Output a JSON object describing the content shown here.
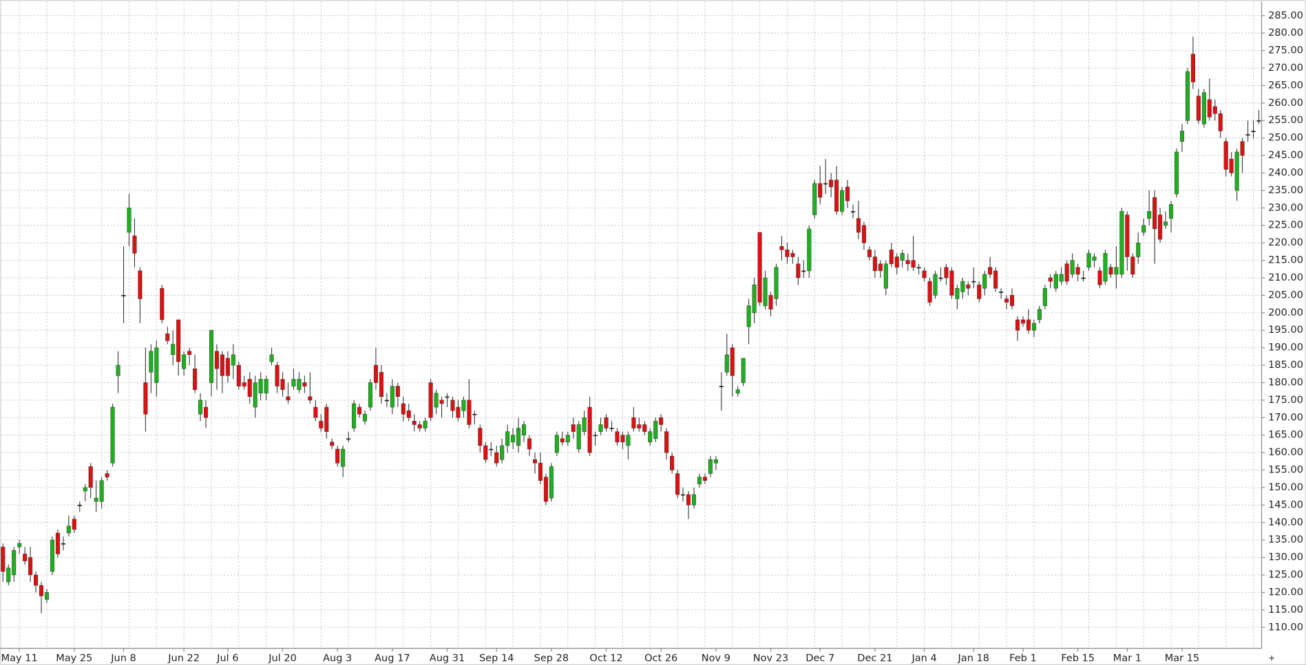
{
  "chart_data": {
    "type": "candlestick",
    "up_color": "#1fb01f",
    "down_color": "#dd1111",
    "grid": true,
    "categories": [
      null,
      null,
      null,
      "May 11",
      null,
      null,
      null,
      null,
      null,
      null,
      null,
      null,
      null,
      "May 25",
      null,
      null,
      null,
      null,
      null,
      null,
      null,
      null,
      "Jun 8",
      null,
      null,
      null,
      null,
      null,
      null,
      null,
      null,
      null,
      null,
      "Jun 22",
      null,
      null,
      null,
      null,
      null,
      null,
      null,
      "Jul 6",
      null,
      null,
      null,
      null,
      null,
      null,
      null,
      null,
      null,
      "Jul 20",
      null,
      null,
      null,
      null,
      null,
      null,
      null,
      null,
      null,
      "Aug 3",
      null,
      null,
      null,
      null,
      null,
      null,
      null,
      null,
      null,
      "Aug 17",
      null,
      null,
      null,
      null,
      null,
      null,
      null,
      null,
      null,
      "Aug 31",
      null,
      null,
      null,
      null,
      null,
      null,
      null,
      null,
      "Sep 14",
      null,
      null,
      null,
      null,
      null,
      null,
      null,
      null,
      null,
      "Sep 28",
      null,
      null,
      null,
      null,
      null,
      null,
      null,
      null,
      null,
      "Oct 12",
      null,
      null,
      null,
      null,
      null,
      null,
      null,
      null,
      null,
      "Oct 26",
      null,
      null,
      null,
      null,
      null,
      null,
      null,
      null,
      null,
      "Nov 9",
      null,
      null,
      null,
      null,
      null,
      null,
      null,
      null,
      null,
      "Nov 23",
      null,
      null,
      null,
      null,
      null,
      null,
      null,
      null,
      "Dec 7",
      null,
      null,
      null,
      null,
      null,
      null,
      null,
      null,
      null,
      "Dec 21",
      null,
      null,
      null,
      null,
      null,
      null,
      null,
      null,
      "Jan 4",
      null,
      null,
      null,
      null,
      null,
      null,
      null,
      null,
      "Jan 18",
      null,
      null,
      null,
      null,
      null,
      null,
      null,
      null,
      "Feb 1",
      null,
      null,
      null,
      null,
      null,
      null,
      null,
      null,
      null,
      "Feb 15",
      null,
      null,
      null,
      null,
      null,
      null,
      null,
      null,
      "Mar 1",
      null,
      null,
      null,
      null,
      null,
      null,
      null,
      null,
      null,
      "Mar 15",
      null,
      null,
      null,
      null,
      null,
      null,
      null,
      null,
      null,
      null,
      null,
      null,
      null,
      null
    ],
    "open": [
      133,
      123,
      125,
      133,
      131,
      130,
      125,
      122,
      118,
      126,
      137,
      134,
      137,
      141,
      145,
      149,
      156,
      146,
      146,
      154,
      157,
      182,
      205,
      223,
      222,
      212,
      180,
      183,
      180,
      207,
      194,
      188,
      198,
      184,
      189,
      184,
      171,
      173,
      180,
      189,
      188,
      187,
      185,
      185,
      180,
      181,
      173,
      177,
      177,
      186,
      185,
      181,
      176,
      179,
      178,
      180,
      176,
      173,
      169,
      173,
      163,
      161,
      156,
      164,
      167,
      173,
      169,
      173,
      185,
      183,
      175,
      173,
      179,
      174,
      172,
      169,
      168,
      167,
      180,
      173,
      175,
      176,
      175,
      173,
      172,
      175,
      171,
      167,
      162,
      161,
      160,
      158,
      162,
      163,
      162,
      165,
      164,
      158,
      157,
      153,
      147,
      160,
      164,
      163,
      168,
      161,
      166,
      173,
      165,
      166,
      170,
      167,
      166,
      165,
      162,
      170,
      168,
      168,
      163,
      164,
      170,
      166,
      159,
      154,
      148,
      148,
      145,
      151,
      153,
      154,
      157,
      179,
      183,
      190,
      177,
      180,
      196,
      200,
      223,
      202,
      205,
      204,
      219,
      218,
      217,
      214,
      212,
      212,
      228,
      237,
      237,
      238,
      238,
      229,
      236,
      229,
      227,
      225,
      218,
      216,
      214,
      207,
      218,
      216,
      215,
      215,
      215,
      213,
      212,
      209,
      205,
      210,
      213,
      212,
      204,
      206,
      208,
      209,
      208,
      207,
      213,
      212,
      206,
      204,
      205,
      198,
      198,
      198,
      195,
      198,
      202,
      210,
      207,
      209,
      214,
      211,
      213,
      210,
      213,
      215,
      212,
      209,
      213,
      211,
      211,
      228,
      216,
      216,
      223,
      227,
      233,
      228,
      225,
      227,
      234,
      249,
      255,
      274,
      262,
      254,
      261,
      259,
      257,
      249,
      244,
      235,
      249,
      251,
      252,
      255
    ],
    "high": [
      134,
      128,
      133,
      135,
      133,
      133,
      126,
      123,
      121,
      136,
      138,
      136,
      142,
      142,
      146,
      151,
      157,
      152,
      153,
      155,
      174,
      189,
      219,
      234,
      227,
      213,
      190,
      191,
      192,
      208,
      196,
      195,
      198,
      189,
      190,
      188,
      177,
      175,
      195,
      191,
      189,
      189,
      191,
      186,
      182,
      183,
      182,
      183,
      182,
      190,
      186,
      183,
      180,
      184,
      183,
      182,
      183,
      175,
      171,
      174,
      164,
      162,
      162,
      166,
      175,
      174,
      172,
      181,
      190,
      185,
      177,
      181,
      180,
      176,
      174,
      171,
      169,
      170,
      181,
      178,
      176,
      177,
      176,
      175,
      176,
      181,
      172,
      168,
      163,
      163,
      162,
      164,
      168,
      167,
      170,
      169,
      165,
      160,
      160,
      154,
      157,
      166,
      166,
      166,
      170,
      169,
      172,
      176,
      166,
      170,
      171,
      169,
      167,
      166,
      166,
      173,
      170,
      169,
      167,
      170,
      171,
      167,
      160,
      155,
      150,
      149,
      150,
      154,
      154,
      159,
      159,
      183,
      194,
      191,
      179,
      187,
      204,
      210,
      223,
      212,
      206,
      214,
      222,
      220,
      218,
      216,
      215,
      225,
      238,
      242,
      244,
      240,
      242,
      236,
      238,
      231,
      232,
      226,
      219,
      218,
      215,
      215,
      220,
      217,
      218,
      217,
      222,
      214,
      213,
      210,
      212,
      213,
      214,
      213,
      208,
      210,
      209,
      213,
      209,
      212,
      216,
      213,
      207,
      205,
      207,
      199,
      199,
      201,
      198,
      202,
      208,
      211,
      212,
      213,
      215,
      217,
      214,
      212,
      218,
      217,
      213,
      218,
      214,
      219,
      230,
      229,
      217,
      223,
      227,
      235,
      235,
      230,
      229,
      232,
      247,
      254,
      270,
      279,
      264,
      264,
      267,
      261,
      258,
      250,
      246,
      247,
      250,
      255,
      255,
      258
    ],
    "low": [
      123,
      122,
      123,
      131,
      128,
      123,
      120,
      114,
      117,
      125,
      130,
      132,
      136,
      137,
      143,
      146,
      147,
      143,
      144,
      152,
      156,
      177,
      197,
      219,
      213,
      197,
      166,
      177,
      176,
      197,
      191,
      185,
      182,
      182,
      185,
      177,
      169,
      167,
      176,
      178,
      177,
      180,
      181,
      178,
      178,
      174,
      170,
      175,
      175,
      185,
      177,
      176,
      174,
      178,
      177,
      177,
      174,
      169,
      166,
      164,
      161,
      156,
      153,
      163,
      166,
      170,
      168,
      172,
      178,
      174,
      173,
      171,
      173,
      169,
      169,
      166,
      166,
      166,
      169,
      171,
      170,
      173,
      170,
      169,
      170,
      167,
      168,
      160,
      157,
      159,
      156,
      157,
      160,
      161,
      160,
      163,
      159,
      154,
      151,
      145,
      146,
      159,
      162,
      162,
      164,
      160,
      165,
      159,
      162,
      165,
      166,
      166,
      162,
      161,
      158,
      166,
      166,
      165,
      162,
      163,
      166,
      158,
      154,
      147,
      146,
      141,
      144,
      150,
      151,
      153,
      155,
      172,
      182,
      176,
      176,
      179,
      191,
      197,
      202,
      201,
      199,
      202,
      215,
      214,
      214,
      208,
      210,
      210,
      227,
      231,
      234,
      233,
      228,
      228,
      230,
      227,
      221,
      218,
      215,
      210,
      210,
      205,
      213,
      211,
      213,
      212,
      212,
      211,
      209,
      202,
      204,
      209,
      208,
      204,
      201,
      204,
      205,
      207,
      203,
      205,
      210,
      206,
      204,
      201,
      201,
      192,
      196,
      194,
      193,
      197,
      201,
      207,
      206,
      208,
      208,
      210,
      209,
      209,
      212,
      213,
      207,
      208,
      210,
      207,
      210,
      212,
      210,
      214,
      222,
      225,
      214,
      220,
      224,
      223,
      233,
      246,
      254,
      264,
      254,
      253,
      255,
      255,
      250,
      239,
      239,
      232,
      240,
      249,
      250,
      254
    ],
    "close": [
      126,
      127,
      132,
      134,
      129,
      125,
      122,
      119,
      120,
      135,
      131,
      134,
      139,
      138,
      145,
      150,
      150,
      147,
      152,
      153,
      173,
      185,
      205,
      230,
      217,
      204,
      171,
      189,
      190,
      198,
      192,
      191,
      186,
      188,
      188,
      178,
      175,
      170,
      195,
      184,
      182,
      182,
      188,
      179,
      179,
      176,
      180,
      181,
      181,
      188,
      179,
      178,
      175,
      181,
      181,
      179,
      175,
      170,
      167,
      166,
      162,
      157,
      161,
      164,
      174,
      171,
      171,
      180,
      180,
      176,
      175,
      179,
      176,
      171,
      170,
      168,
      167,
      169,
      170,
      177,
      174,
      176,
      172,
      170,
      175,
      168,
      171,
      162,
      158,
      161,
      157,
      162,
      166,
      165,
      167,
      168,
      161,
      157,
      152,
      146,
      156,
      165,
      163,
      165,
      166,
      168,
      170,
      160,
      165,
      168,
      167,
      167,
      163,
      163,
      165,
      167,
      167,
      166,
      166,
      169,
      168,
      160,
      155,
      148,
      148,
      145,
      148,
      153,
      152,
      158,
      158,
      179,
      188,
      182,
      178,
      187,
      202,
      208,
      203,
      210,
      201,
      213,
      218,
      216,
      216,
      210,
      212,
      224,
      237,
      233,
      237,
      236,
      229,
      235,
      232,
      229,
      223,
      220,
      216,
      212,
      212,
      214,
      214,
      213,
      217,
      214,
      213,
      213,
      210,
      203,
      211,
      210,
      210,
      205,
      207,
      209,
      207,
      209,
      204,
      211,
      211,
      207,
      206,
      203,
      202,
      195,
      197,
      195,
      197,
      201,
      207,
      209,
      211,
      211,
      209,
      215,
      211,
      210,
      217,
      216,
      208,
      217,
      211,
      213,
      229,
      216,
      211,
      220,
      225,
      229,
      224,
      221,
      226,
      231,
      246,
      252,
      269,
      266,
      255,
      263,
      256,
      257,
      252,
      241,
      240,
      246,
      245,
      251,
      252,
      255
    ],
    "ylim": [
      104,
      289
    ],
    "yticks": [
      {
        "value": 110,
        "label": "110.00"
      },
      {
        "value": 115,
        "label": "115.00"
      },
      {
        "value": 120,
        "label": "120.00"
      },
      {
        "value": 125,
        "label": "125.00"
      },
      {
        "value": 130,
        "label": "130.00"
      },
      {
        "value": 135,
        "label": "135.00"
      },
      {
        "value": 140,
        "label": "140.00"
      },
      {
        "value": 145,
        "label": "145.00"
      },
      {
        "value": 150,
        "label": "150.00"
      },
      {
        "value": 155,
        "label": "155.00"
      },
      {
        "value": 160,
        "label": "160.00"
      },
      {
        "value": 165,
        "label": "165.00"
      },
      {
        "value": 170,
        "label": "170.00"
      },
      {
        "value": 175,
        "label": "175.00"
      },
      {
        "value": 180,
        "label": "180.00"
      },
      {
        "value": 185,
        "label": "185.00"
      },
      {
        "value": 190,
        "label": "190.00"
      },
      {
        "value": 195,
        "label": "195.00"
      },
      {
        "value": 200,
        "label": "200.00"
      },
      {
        "value": 205,
        "label": "205.00"
      },
      {
        "value": 210,
        "label": "210.00"
      },
      {
        "value": 215,
        "label": "215.00"
      },
      {
        "value": 220,
        "label": "220.00"
      },
      {
        "value": 225,
        "label": "225.00"
      },
      {
        "value": 230,
        "label": "230.00"
      },
      {
        "value": 235,
        "label": "235.00"
      },
      {
        "value": 240,
        "label": "240.00"
      },
      {
        "value": 245,
        "label": "245.00"
      },
      {
        "value": 250,
        "label": "250.00"
      },
      {
        "value": 255,
        "label": "255.00"
      },
      {
        "value": 260,
        "label": "260.00"
      },
      {
        "value": 265,
        "label": "265.00"
      },
      {
        "value": 270,
        "label": "270.00"
      },
      {
        "value": 275,
        "label": "275.00"
      },
      {
        "value": 280,
        "label": "280.00"
      },
      {
        "value": 285,
        "label": "285.00"
      }
    ]
  }
}
